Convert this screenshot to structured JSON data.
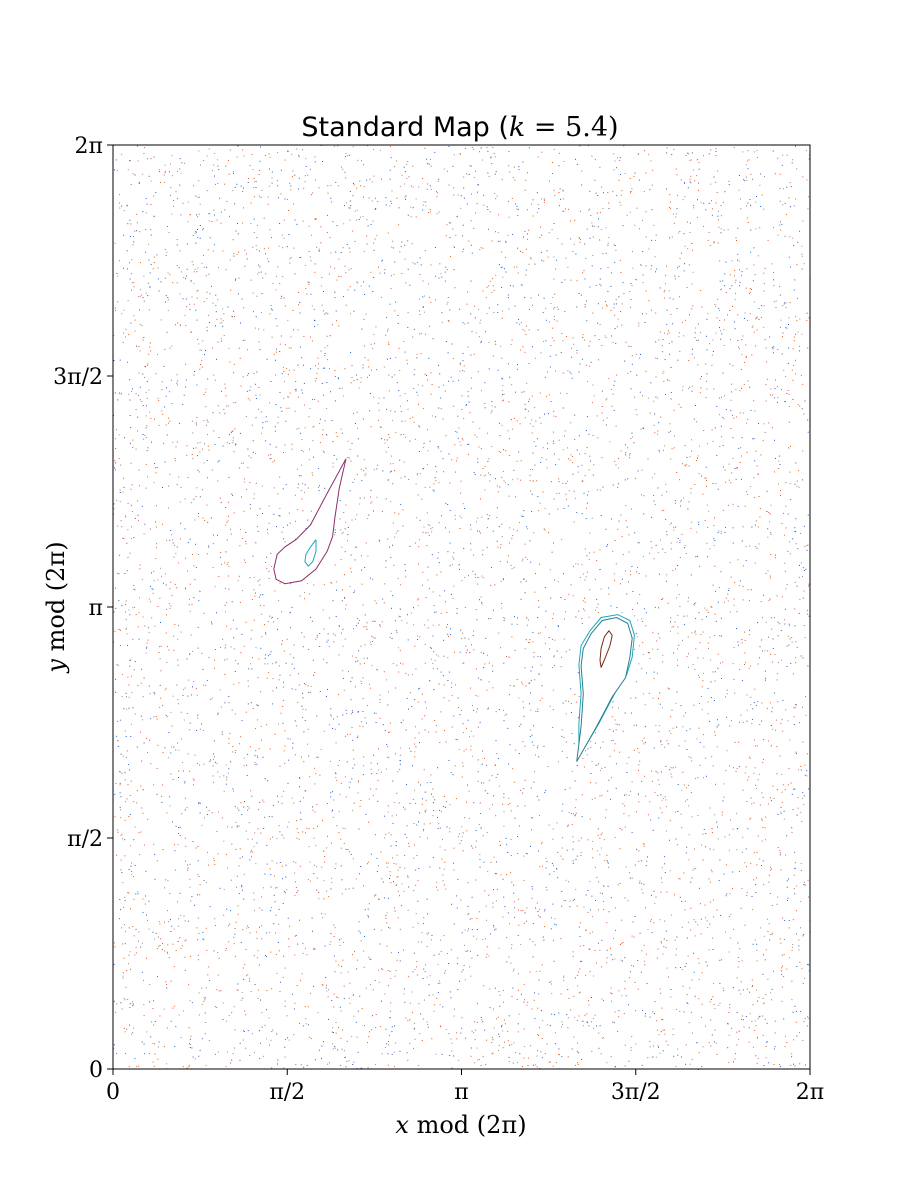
{
  "chart_data": {
    "type": "scatter",
    "title": "Standard Map (k = 5.4)",
    "title_parts": {
      "prefix": "Standard Map (",
      "var": "k",
      "eq": " = 5.4",
      "suffix": ")"
    },
    "xlabel": "x mod (2π)",
    "xlabel_parts": {
      "var": "x",
      "rest": " mod (2π)"
    },
    "ylabel": "y mod (2π)",
    "ylabel_parts": {
      "var": "y",
      "rest": " mod (2π)"
    },
    "xlim": [
      0,
      6.2832
    ],
    "ylim": [
      0,
      6.2832
    ],
    "xticks": [
      {
        "value": 0,
        "label": "0"
      },
      {
        "value": 1.5708,
        "label": "π/2"
      },
      {
        "value": 3.1416,
        "label": "π"
      },
      {
        "value": 4.7124,
        "label": "3π/2"
      },
      {
        "value": 6.2832,
        "label": "2π"
      }
    ],
    "yticks": [
      {
        "value": 0,
        "label": "0"
      },
      {
        "value": 1.5708,
        "label": "π/2"
      },
      {
        "value": 3.1416,
        "label": "π"
      },
      {
        "value": 4.7124,
        "label": "3π/2"
      },
      {
        "value": 6.2832,
        "label": "2π"
      }
    ],
    "grid": false,
    "legend": "none",
    "parameter_k": 5.4,
    "series": [
      {
        "kind": "chaotic-sea",
        "color": "#e05a1f",
        "points_description": "dense uniform scatter filling the square",
        "count": 3600
      },
      {
        "kind": "chaotic-sea",
        "color": "#1f5fcf",
        "count": 2400
      },
      {
        "kind": "chaotic-sea",
        "color": "#9a8a80",
        "count": 1600
      },
      {
        "kind": "island-orbit",
        "color": "#8b2f6b",
        "points": [
          [
            2.1,
            4.15
          ],
          [
            1.92,
            3.9
          ],
          [
            1.78,
            3.7
          ],
          [
            1.65,
            3.6
          ],
          [
            1.55,
            3.55
          ],
          [
            1.48,
            3.5
          ],
          [
            1.45,
            3.4
          ],
          [
            1.47,
            3.33
          ],
          [
            1.55,
            3.3
          ],
          [
            1.7,
            3.32
          ],
          [
            1.83,
            3.4
          ],
          [
            1.93,
            3.52
          ],
          [
            1.98,
            3.62
          ],
          [
            2.0,
            3.75
          ],
          [
            2.04,
            3.95
          ],
          [
            2.1,
            4.15
          ]
        ]
      },
      {
        "kind": "island-orbit",
        "color": "#1aa7c0",
        "points": [
          [
            1.83,
            3.6
          ],
          [
            1.78,
            3.55
          ],
          [
            1.74,
            3.5
          ],
          [
            1.73,
            3.45
          ],
          [
            1.76,
            3.42
          ],
          [
            1.8,
            3.45
          ],
          [
            1.83,
            3.52
          ],
          [
            1.83,
            3.6
          ]
        ]
      },
      {
        "kind": "island-orbit",
        "color": "#1aa7c0",
        "points": [
          [
            4.2,
            2.12
          ],
          [
            4.38,
            2.35
          ],
          [
            4.52,
            2.55
          ],
          [
            4.63,
            2.68
          ],
          [
            4.68,
            2.8
          ],
          [
            4.7,
            2.95
          ],
          [
            4.66,
            3.05
          ],
          [
            4.55,
            3.09
          ],
          [
            4.4,
            3.07
          ],
          [
            4.3,
            2.98
          ],
          [
            4.22,
            2.88
          ],
          [
            4.2,
            2.75
          ],
          [
            4.22,
            2.55
          ],
          [
            4.2,
            2.35
          ],
          [
            4.2,
            2.12
          ]
        ]
      },
      {
        "kind": "island-orbit",
        "color": "#2a7f8f",
        "points": [
          [
            4.18,
            2.09
          ],
          [
            4.36,
            2.33
          ],
          [
            4.5,
            2.53
          ],
          [
            4.62,
            2.66
          ],
          [
            4.66,
            2.8
          ],
          [
            4.68,
            2.93
          ],
          [
            4.64,
            3.03
          ],
          [
            4.54,
            3.07
          ],
          [
            4.41,
            3.05
          ],
          [
            4.31,
            2.96
          ],
          [
            4.24,
            2.86
          ],
          [
            4.22,
            2.74
          ],
          [
            4.24,
            2.55
          ],
          [
            4.22,
            2.33
          ],
          [
            4.18,
            2.09
          ]
        ]
      },
      {
        "kind": "island-orbit",
        "color": "#7a2a1a",
        "points": [
          [
            4.4,
            2.73
          ],
          [
            4.44,
            2.8
          ],
          [
            4.48,
            2.88
          ],
          [
            4.5,
            2.95
          ],
          [
            4.47,
            2.98
          ],
          [
            4.43,
            2.94
          ],
          [
            4.4,
            2.86
          ],
          [
            4.39,
            2.78
          ],
          [
            4.4,
            2.73
          ]
        ]
      }
    ]
  }
}
